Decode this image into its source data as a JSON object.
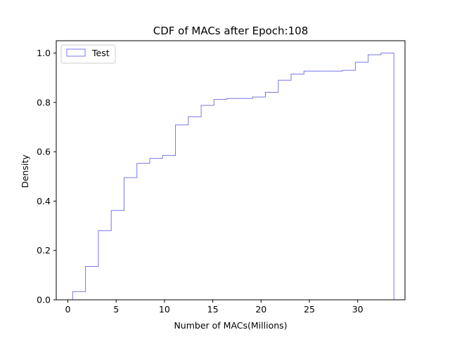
{
  "chart_data": {
    "type": "line",
    "subtype": "step-histogram-cdf",
    "title": "CDF of MACs after Epoch:108",
    "xlabel": "Number of MACs(Millions)",
    "ylabel": "Density",
    "xlim": [
      -1.2,
      34.9
    ],
    "ylim": [
      0,
      1.05
    ],
    "xticks": [
      0,
      5,
      10,
      15,
      20,
      25,
      30
    ],
    "yticks": [
      0.0,
      0.2,
      0.4,
      0.6,
      0.8,
      1.0
    ],
    "ytick_labels": [
      "0.0",
      "0.2",
      "0.4",
      "0.6",
      "0.8",
      "1.0"
    ],
    "grid": false,
    "legend": "upper left",
    "series": [
      {
        "name": "Test",
        "color": "#7777ee",
        "bin_edges": [
          0.5,
          1.83,
          3.16,
          4.49,
          5.82,
          7.15,
          8.48,
          9.81,
          11.14,
          12.47,
          13.8,
          15.13,
          16.46,
          17.79,
          19.12,
          20.45,
          21.78,
          23.11,
          24.44,
          25.77,
          27.1,
          28.43,
          29.76,
          31.09,
          32.42,
          33.75
        ],
        "values": [
          0.033,
          0.135,
          0.28,
          0.362,
          0.495,
          0.553,
          0.573,
          0.585,
          0.709,
          0.742,
          0.788,
          0.812,
          0.816,
          0.816,
          0.822,
          0.841,
          0.89,
          0.915,
          0.927,
          0.927,
          0.927,
          0.93,
          0.963,
          0.993,
          1.0
        ]
      }
    ]
  }
}
